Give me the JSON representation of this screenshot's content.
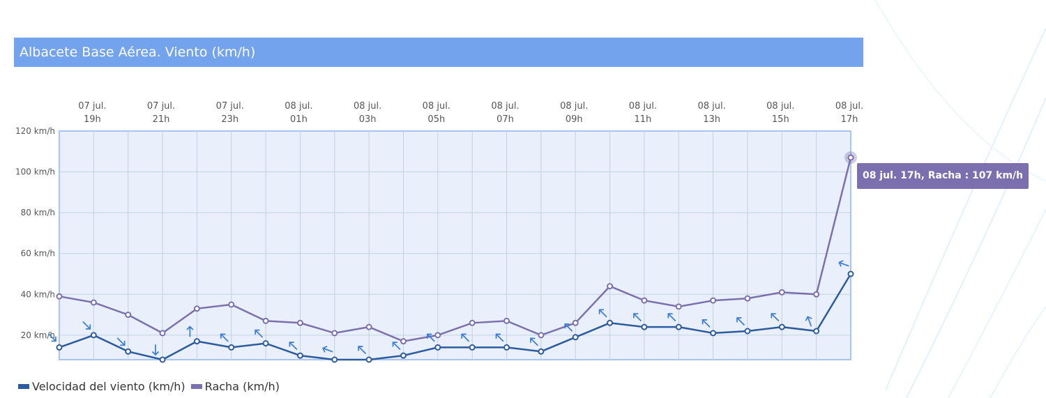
{
  "title": "Albacete Base Aérea. Viento (km/h)",
  "tooltip": "08 jul. 17h, Racha : 107 km/h",
  "colors": {
    "title_bg": "#72a3ec",
    "plot_bg": "#e9f0fb",
    "wind_speed": "#2c5b9e",
    "gust": "#7a70ad",
    "direction_arrow": "#3f7fd8"
  },
  "legend": [
    {
      "label": "Velocidad del viento (km/h)",
      "color": "#2c5b9e"
    },
    {
      "label": "Racha (km/h)",
      "color": "#7a70ad"
    }
  ],
  "chart_data": {
    "type": "line",
    "categories": [
      "07 jul. 18h",
      "07 jul. 19h",
      "07 jul. 20h",
      "07 jul. 21h",
      "07 jul. 22h",
      "07 jul. 23h",
      "08 jul. 00h",
      "08 jul. 01h",
      "08 jul. 02h",
      "08 jul. 03h",
      "08 jul. 04h",
      "08 jul. 05h",
      "08 jul. 06h",
      "08 jul. 07h",
      "08 jul. 08h",
      "08 jul. 09h",
      "08 jul. 10h",
      "08 jul. 11h",
      "08 jul. 12h",
      "08 jul. 13h",
      "08 jul. 14h",
      "08 jul. 15h",
      "08 jul. 16h",
      "08 jul. 17h"
    ],
    "x_tick_labels": [
      {
        "index": 1,
        "line1": "07 jul.",
        "line2": "19h"
      },
      {
        "index": 3,
        "line1": "07 jul.",
        "line2": "21h"
      },
      {
        "index": 5,
        "line1": "07 jul.",
        "line2": "23h"
      },
      {
        "index": 7,
        "line1": "08 jul.",
        "line2": "01h"
      },
      {
        "index": 9,
        "line1": "08 jul.",
        "line2": "03h"
      },
      {
        "index": 11,
        "line1": "08 jul.",
        "line2": "05h"
      },
      {
        "index": 13,
        "line1": "08 jul.",
        "line2": "07h"
      },
      {
        "index": 15,
        "line1": "08 jul.",
        "line2": "09h"
      },
      {
        "index": 17,
        "line1": "08 jul.",
        "line2": "11h"
      },
      {
        "index": 19,
        "line1": "08 jul.",
        "line2": "13h"
      },
      {
        "index": 21,
        "line1": "08 jul.",
        "line2": "15h"
      },
      {
        "index": 23,
        "line1": "08 jul.",
        "line2": "17h"
      }
    ],
    "y_ticks": [
      {
        "value": 20,
        "label": "20 km/h"
      },
      {
        "value": 40,
        "label": "40 km/h"
      },
      {
        "value": 60,
        "label": "60 km/h"
      },
      {
        "value": 80,
        "label": "80 km/h"
      },
      {
        "value": 100,
        "label": "100 km/h"
      },
      {
        "value": 120,
        "label": "120 km/h"
      }
    ],
    "ylim": [
      8,
      120
    ],
    "grid": true,
    "x_axis_position": "top",
    "legend_position": "bottom-left",
    "series": [
      {
        "name": "Velocidad del viento (km/h)",
        "values": [
          14,
          20,
          12,
          8,
          17,
          14,
          16,
          10,
          8,
          8,
          10,
          14,
          14,
          14,
          12,
          19,
          26,
          24,
          24,
          21,
          22,
          24,
          22,
          50
        ],
        "direction_arrow_deg": [
          135,
          135,
          135,
          180,
          0,
          315,
          315,
          315,
          290,
          315,
          315,
          315,
          315,
          315,
          315,
          315,
          315,
          315,
          315,
          315,
          315,
          315,
          340,
          290
        ]
      },
      {
        "name": "Racha (km/h)",
        "values": [
          39,
          36,
          30,
          21,
          33,
          35,
          27,
          26,
          21,
          24,
          17,
          20,
          26,
          27,
          20,
          26,
          44,
          37,
          34,
          37,
          38,
          41,
          40,
          107
        ]
      }
    ],
    "highlighted_point": {
      "series": "Racha (km/h)",
      "index": 23,
      "value": 107
    }
  }
}
